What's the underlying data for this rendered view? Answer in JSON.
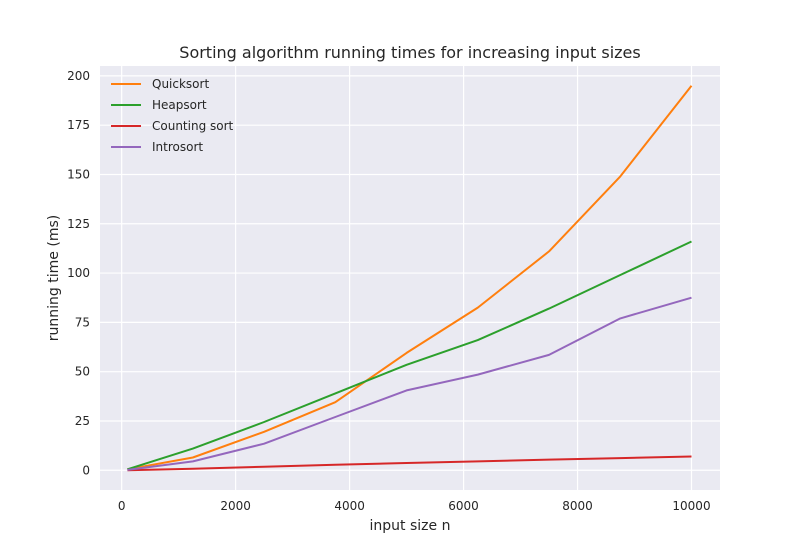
{
  "chart_data": {
    "type": "line",
    "title": "Sorting algorithm running times for increasing input sizes",
    "xlabel": "input size n",
    "ylabel": "running time (ms)",
    "xlim": [
      -380,
      10500
    ],
    "ylim": [
      -10,
      205
    ],
    "xticks": [
      0,
      2000,
      4000,
      6000,
      8000,
      10000
    ],
    "yticks": [
      0,
      25,
      50,
      75,
      100,
      125,
      150,
      175,
      200
    ],
    "grid": true,
    "legend_position": "top-left",
    "x": [
      100,
      1250,
      2500,
      3750,
      5000,
      6250,
      7500,
      8750,
      10000
    ],
    "series": [
      {
        "name": "Quicksort",
        "color": "#ff7f0e",
        "values": [
          0.5,
          6.5,
          19.5,
          34.5,
          59.5,
          82.5,
          111,
          149,
          195
        ]
      },
      {
        "name": "Heapsort",
        "color": "#2ca02c",
        "values": [
          0.5,
          11,
          24.5,
          39,
          53.5,
          66,
          82,
          99,
          116
        ]
      },
      {
        "name": "Counting sort",
        "color": "#d62728",
        "values": [
          0,
          0.8,
          1.8,
          2.8,
          3.7,
          4.5,
          5.4,
          6.2,
          7.0
        ]
      },
      {
        "name": "Introsort",
        "color": "#9467bd",
        "values": [
          0.2,
          4.5,
          13.5,
          27,
          40.5,
          48.5,
          58.5,
          77,
          87.5
        ]
      }
    ]
  }
}
